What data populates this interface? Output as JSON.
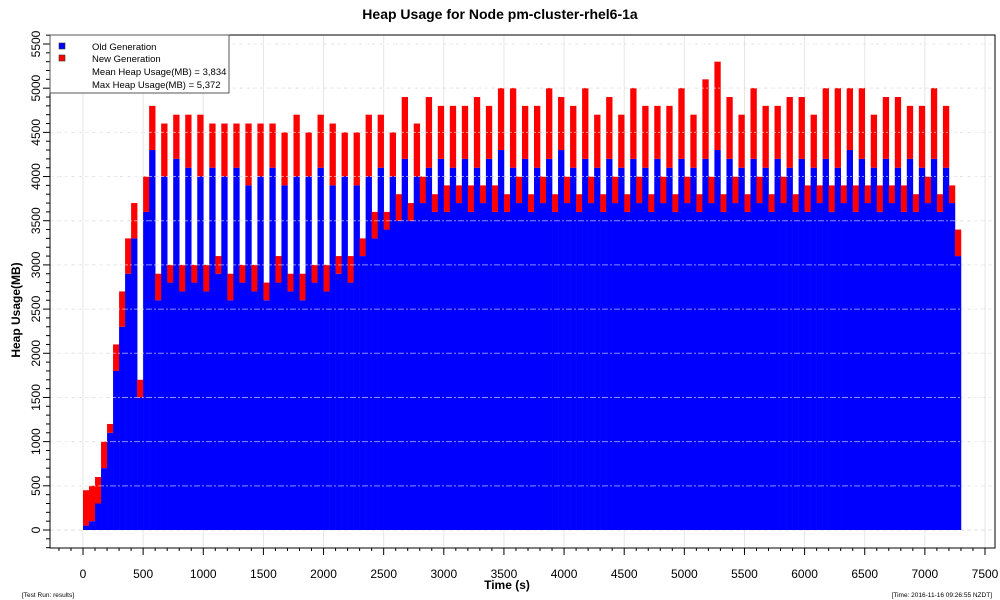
{
  "chart_data": {
    "type": "bar",
    "stacked": true,
    "title": "Heap Usage for Node pm-cluster-rhel6-1a",
    "xlabel": "Time (s)",
    "ylabel": "Heap Usage(MB)",
    "xlim": [
      -250,
      7550
    ],
    "ylim": [
      -200,
      5600
    ],
    "x_ticks": [
      0,
      500,
      1000,
      1500,
      2000,
      2500,
      3000,
      3500,
      4000,
      4500,
      5000,
      5500,
      6000,
      6500,
      7000,
      7500
    ],
    "y_ticks": [
      0,
      500,
      1000,
      1500,
      2000,
      2500,
      3000,
      3500,
      4000,
      4500,
      5000,
      5500
    ],
    "grid": true,
    "legend_position": "top-left",
    "legend": {
      "entries": [
        "Old Generation",
        "New Generation"
      ],
      "mean_text": "Mean Heap Usage(MB) = 3,834",
      "max_text": "Max Heap Usage(MB) = 5,372"
    },
    "x_step": 50,
    "x_start": 0,
    "series": [
      {
        "name": "Old Generation",
        "color": "#0000ff",
        "values": [
          50,
          100,
          300,
          700,
          1100,
          1800,
          2300,
          2900,
          3300,
          1500,
          3600,
          4300,
          2600,
          4000,
          2800,
          4200,
          2700,
          4100,
          2800,
          4000,
          2700,
          4100,
          2900,
          4000,
          2600,
          4100,
          2800,
          3900,
          2700,
          4000,
          2600,
          4100,
          2800,
          3900,
          2700,
          4000,
          2600,
          4000,
          2800,
          4100,
          2700,
          3900,
          2900,
          4000,
          2800,
          3900,
          3100,
          4000,
          3300,
          4100,
          3400,
          4000,
          3500,
          4200,
          3500,
          4000,
          3700,
          4100,
          3600,
          4200,
          3600,
          4100,
          3700,
          4200,
          3600,
          4100,
          3700,
          4200,
          3600,
          4300,
          3600,
          4100,
          3700,
          4200,
          3600,
          4100,
          3700,
          4200,
          3600,
          4300,
          3700,
          4100,
          3600,
          4200,
          3700,
          4100,
          3600,
          4200,
          3700,
          4100,
          3600,
          4200,
          3700,
          4100,
          3600,
          4200,
          3700,
          4100,
          3600,
          4200,
          3700,
          4100,
          3600,
          4200,
          3700,
          4300,
          3600,
          4200,
          3700,
          4100,
          3600,
          4200,
          3700,
          4100,
          3600,
          4200,
          3700,
          4100,
          3600,
          4200,
          3600,
          4100,
          3700,
          4200,
          3600,
          4100,
          3700,
          4300,
          3600,
          4200,
          3700,
          4100,
          3600,
          4200,
          3700,
          4100,
          3600,
          4200,
          3600,
          4100,
          3700,
          4200,
          3600,
          4100,
          3700,
          3100
        ]
      },
      {
        "name": "New Generation",
        "color": "#ff0000",
        "values": [
          400,
          400,
          300,
          300,
          100,
          300,
          400,
          400,
          400,
          200,
          400,
          500,
          300,
          600,
          200,
          500,
          300,
          600,
          200,
          700,
          300,
          500,
          200,
          600,
          300,
          500,
          200,
          700,
          300,
          600,
          200,
          500,
          300,
          600,
          200,
          700,
          300,
          500,
          200,
          600,
          300,
          700,
          200,
          500,
          300,
          600,
          200,
          700,
          300,
          600,
          200,
          500,
          300,
          700,
          200,
          600,
          300,
          800,
          200,
          600,
          300,
          700,
          200,
          600,
          300,
          800,
          200,
          600,
          300,
          700,
          200,
          900,
          300,
          600,
          200,
          700,
          300,
          800,
          200,
          600,
          300,
          700,
          200,
          800,
          300,
          600,
          200,
          700,
          300,
          600,
          200,
          800,
          300,
          700,
          200,
          600,
          300,
          700,
          200,
          800,
          300,
          600,
          200,
          900,
          300,
          1000,
          200,
          700,
          300,
          600,
          200,
          800,
          300,
          700,
          200,
          600,
          300,
          800,
          200,
          700,
          300,
          600,
          200,
          800,
          300,
          900,
          200,
          700,
          300,
          800,
          200,
          600,
          300,
          700,
          200,
          800,
          300,
          600,
          200,
          700,
          300,
          800,
          200,
          700,
          200,
          300
        ]
      }
    ]
  },
  "footer": {
    "left": "[Test Run: results]",
    "right": "[Time: 2016-11-16 09:26:55 NZDT]"
  }
}
